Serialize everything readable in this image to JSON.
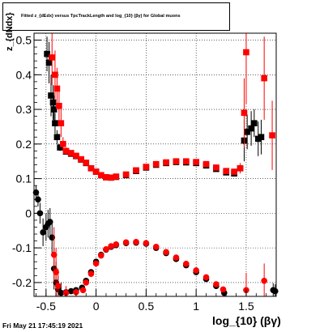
{
  "title": "Fitted z_{dEdx} versus TpcTrackLength and log_{10} (βγ) for Global muons",
  "footer_timestamp": "Fri May 21 17:45:19 2021",
  "colors": {
    "series_upper_dark": "#000000",
    "series_red": "#ff0000",
    "frame": "#000000",
    "grid": "#000000"
  },
  "chart_data": {
    "type": "scatter",
    "title": "Fitted z_{dEdx} versus TpcTrackLength and log_{10} (βγ) for Global muons",
    "xlabel": "log_{10} (βγ)",
    "ylabel": "z_{dNdx}",
    "xlim": [
      -0.62,
      1.8
    ],
    "ylim": [
      -0.24,
      0.52
    ],
    "xticks": [
      -0.5,
      0,
      0.5,
      1,
      1.5
    ],
    "xtick_labels": [
      "-0.5",
      "0",
      "0.5",
      "1",
      "1.5"
    ],
    "yticks": [
      -0.2,
      -0.1,
      0,
      0.1,
      0.2,
      0.3,
      0.4,
      0.5
    ],
    "ytick_labels": [
      "-0.2",
      "-0.1",
      "0",
      "0.1",
      "0.2",
      "0.3",
      "0.4",
      "0.5"
    ],
    "grid": true,
    "series": [
      {
        "color": "#000000",
        "marker": "square",
        "points": [
          [
            -0.49,
            0.46,
            0.05
          ],
          [
            -0.47,
            0.435,
            0.06
          ],
          [
            -0.45,
            0.34,
            0.06
          ],
          [
            -0.43,
            0.32,
            0.05
          ],
          [
            -0.42,
            0.3,
            0.04
          ],
          [
            -0.41,
            0.26,
            0.03
          ],
          [
            -0.39,
            0.22,
            0.02
          ],
          [
            -0.36,
            0.19,
            0.01
          ],
          [
            -0.3,
            0.178,
            0.005
          ],
          [
            -0.25,
            0.172,
            0.004
          ],
          [
            -0.2,
            0.165,
            0.003
          ],
          [
            -0.15,
            0.155,
            0.003
          ],
          [
            -0.1,
            0.145,
            0.003
          ],
          [
            -0.05,
            0.13,
            0.003
          ],
          [
            0.0,
            0.12,
            0.003
          ],
          [
            0.05,
            0.11,
            0.003
          ],
          [
            0.1,
            0.104,
            0.003
          ],
          [
            0.15,
            0.103,
            0.003
          ],
          [
            0.2,
            0.105,
            0.003
          ],
          [
            0.3,
            0.11,
            0.003
          ],
          [
            0.4,
            0.122,
            0.003
          ],
          [
            0.5,
            0.132,
            0.003
          ],
          [
            0.6,
            0.14,
            0.003
          ],
          [
            0.7,
            0.145,
            0.003
          ],
          [
            0.8,
            0.148,
            0.003
          ],
          [
            0.9,
            0.147,
            0.003
          ],
          [
            1.0,
            0.145,
            0.003
          ],
          [
            1.1,
            0.138,
            0.003
          ],
          [
            1.2,
            0.128,
            0.004
          ],
          [
            1.3,
            0.118,
            0.004
          ],
          [
            1.38,
            0.115,
            0.005
          ],
          [
            1.44,
            0.13,
            0.01
          ],
          [
            1.48,
            0.21,
            0.06
          ],
          [
            1.51,
            0.235,
            0.05
          ],
          [
            1.55,
            0.245,
            0.05
          ],
          [
            1.58,
            0.26,
            0.04
          ],
          [
            1.62,
            0.215,
            0.05
          ],
          [
            1.65,
            0.22,
            0.05
          ]
        ]
      },
      {
        "color": "#ff0000",
        "marker": "square",
        "points": [
          [
            -0.44,
            0.45,
            0.08
          ],
          [
            -0.41,
            0.4,
            0.07
          ],
          [
            -0.39,
            0.36,
            0.06
          ],
          [
            -0.37,
            0.31,
            0.05
          ],
          [
            -0.35,
            0.26,
            0.04
          ],
          [
            -0.33,
            0.2,
            0.02
          ],
          [
            -0.3,
            0.18,
            0.01
          ],
          [
            -0.25,
            0.174,
            0.005
          ],
          [
            -0.2,
            0.166,
            0.004
          ],
          [
            -0.15,
            0.156,
            0.003
          ],
          [
            -0.1,
            0.146,
            0.003
          ],
          [
            -0.05,
            0.13,
            0.003
          ],
          [
            0.0,
            0.12,
            0.003
          ],
          [
            0.05,
            0.11,
            0.003
          ],
          [
            0.1,
            0.104,
            0.003
          ],
          [
            0.15,
            0.103,
            0.003
          ],
          [
            0.2,
            0.106,
            0.003
          ],
          [
            0.3,
            0.112,
            0.003
          ],
          [
            0.4,
            0.124,
            0.003
          ],
          [
            0.5,
            0.134,
            0.003
          ],
          [
            0.6,
            0.142,
            0.003
          ],
          [
            0.7,
            0.147,
            0.003
          ],
          [
            0.8,
            0.15,
            0.003
          ],
          [
            0.9,
            0.15,
            0.003
          ],
          [
            1.0,
            0.148,
            0.003
          ],
          [
            1.1,
            0.142,
            0.003
          ],
          [
            1.2,
            0.132,
            0.004
          ],
          [
            1.3,
            0.122,
            0.004
          ],
          [
            1.38,
            0.12,
            0.006
          ],
          [
            1.44,
            0.13,
            0.015
          ],
          [
            1.48,
            0.29,
            0.1
          ],
          [
            1.5,
            0.465,
            0.15
          ],
          [
            1.68,
            0.39,
            0.12
          ],
          [
            1.76,
            0.225,
            0.1
          ]
        ]
      },
      {
        "color": "#000000",
        "marker": "circle",
        "points": [
          [
            -0.6,
            0.06,
            0.02
          ],
          [
            -0.58,
            0.04,
            0.02
          ],
          [
            -0.56,
            0.0,
            0.03
          ],
          [
            -0.53,
            -0.055,
            0.04
          ],
          [
            -0.5,
            -0.04,
            0.04
          ],
          [
            -0.48,
            -0.03,
            0.04
          ],
          [
            -0.46,
            -0.025,
            0.04
          ],
          [
            -0.44,
            -0.07,
            0.05
          ],
          [
            -0.42,
            -0.16,
            0.06
          ],
          [
            -0.4,
            -0.2,
            0.06
          ],
          [
            -0.38,
            -0.22,
            0.04
          ],
          [
            -0.35,
            -0.23,
            0.03
          ],
          [
            -0.3,
            -0.228,
            0.01
          ],
          [
            -0.25,
            -0.225,
            0.008
          ],
          [
            -0.2,
            -0.222,
            0.006
          ],
          [
            -0.14,
            -0.215,
            0.005
          ],
          [
            -0.1,
            -0.195,
            0.004
          ],
          [
            -0.05,
            -0.17,
            0.003
          ],
          [
            0.0,
            -0.14,
            0.003
          ],
          [
            0.05,
            -0.12,
            0.003
          ],
          [
            0.1,
            -0.105,
            0.003
          ],
          [
            0.15,
            -0.097,
            0.003
          ],
          [
            0.2,
            -0.092,
            0.003
          ],
          [
            0.3,
            -0.086,
            0.003
          ],
          [
            0.4,
            -0.085,
            0.003
          ],
          [
            0.5,
            -0.088,
            0.003
          ],
          [
            0.6,
            -0.1,
            0.003
          ],
          [
            0.7,
            -0.115,
            0.003
          ],
          [
            0.8,
            -0.132,
            0.003
          ],
          [
            0.9,
            -0.15,
            0.003
          ],
          [
            1.0,
            -0.17,
            0.004
          ],
          [
            1.1,
            -0.19,
            0.004
          ],
          [
            1.2,
            -0.21,
            0.005
          ],
          [
            1.28,
            -0.23,
            0.006
          ],
          [
            1.77,
            -0.222,
            0.02
          ],
          [
            1.79,
            -0.225,
            0.02
          ]
        ]
      },
      {
        "color": "#ff0000",
        "marker": "circle",
        "points": [
          [
            -0.42,
            -0.12,
            0.08
          ],
          [
            -0.4,
            -0.17,
            0.07
          ],
          [
            -0.38,
            -0.21,
            0.05
          ],
          [
            -0.3,
            -0.23,
            0.02
          ],
          [
            -0.2,
            -0.228,
            0.01
          ],
          [
            -0.13,
            -0.222,
            0.006
          ],
          [
            -0.1,
            -0.2,
            0.005
          ],
          [
            -0.05,
            -0.175,
            0.004
          ],
          [
            0.0,
            -0.145,
            0.003
          ],
          [
            0.05,
            -0.122,
            0.003
          ],
          [
            0.1,
            -0.104,
            0.003
          ],
          [
            0.15,
            -0.095,
            0.003
          ],
          [
            0.2,
            -0.09,
            0.003
          ],
          [
            0.3,
            -0.084,
            0.003
          ],
          [
            0.4,
            -0.083,
            0.003
          ],
          [
            0.5,
            -0.086,
            0.003
          ],
          [
            0.6,
            -0.097,
            0.003
          ],
          [
            0.7,
            -0.112,
            0.003
          ],
          [
            0.8,
            -0.128,
            0.003
          ],
          [
            0.9,
            -0.146,
            0.003
          ],
          [
            1.0,
            -0.165,
            0.004
          ],
          [
            1.1,
            -0.185,
            0.005
          ],
          [
            1.2,
            -0.205,
            0.006
          ],
          [
            1.27,
            -0.22,
            0.008
          ],
          [
            1.5,
            -0.222,
            0.05
          ],
          [
            1.68,
            -0.195,
            0.05
          ]
        ]
      }
    ]
  }
}
